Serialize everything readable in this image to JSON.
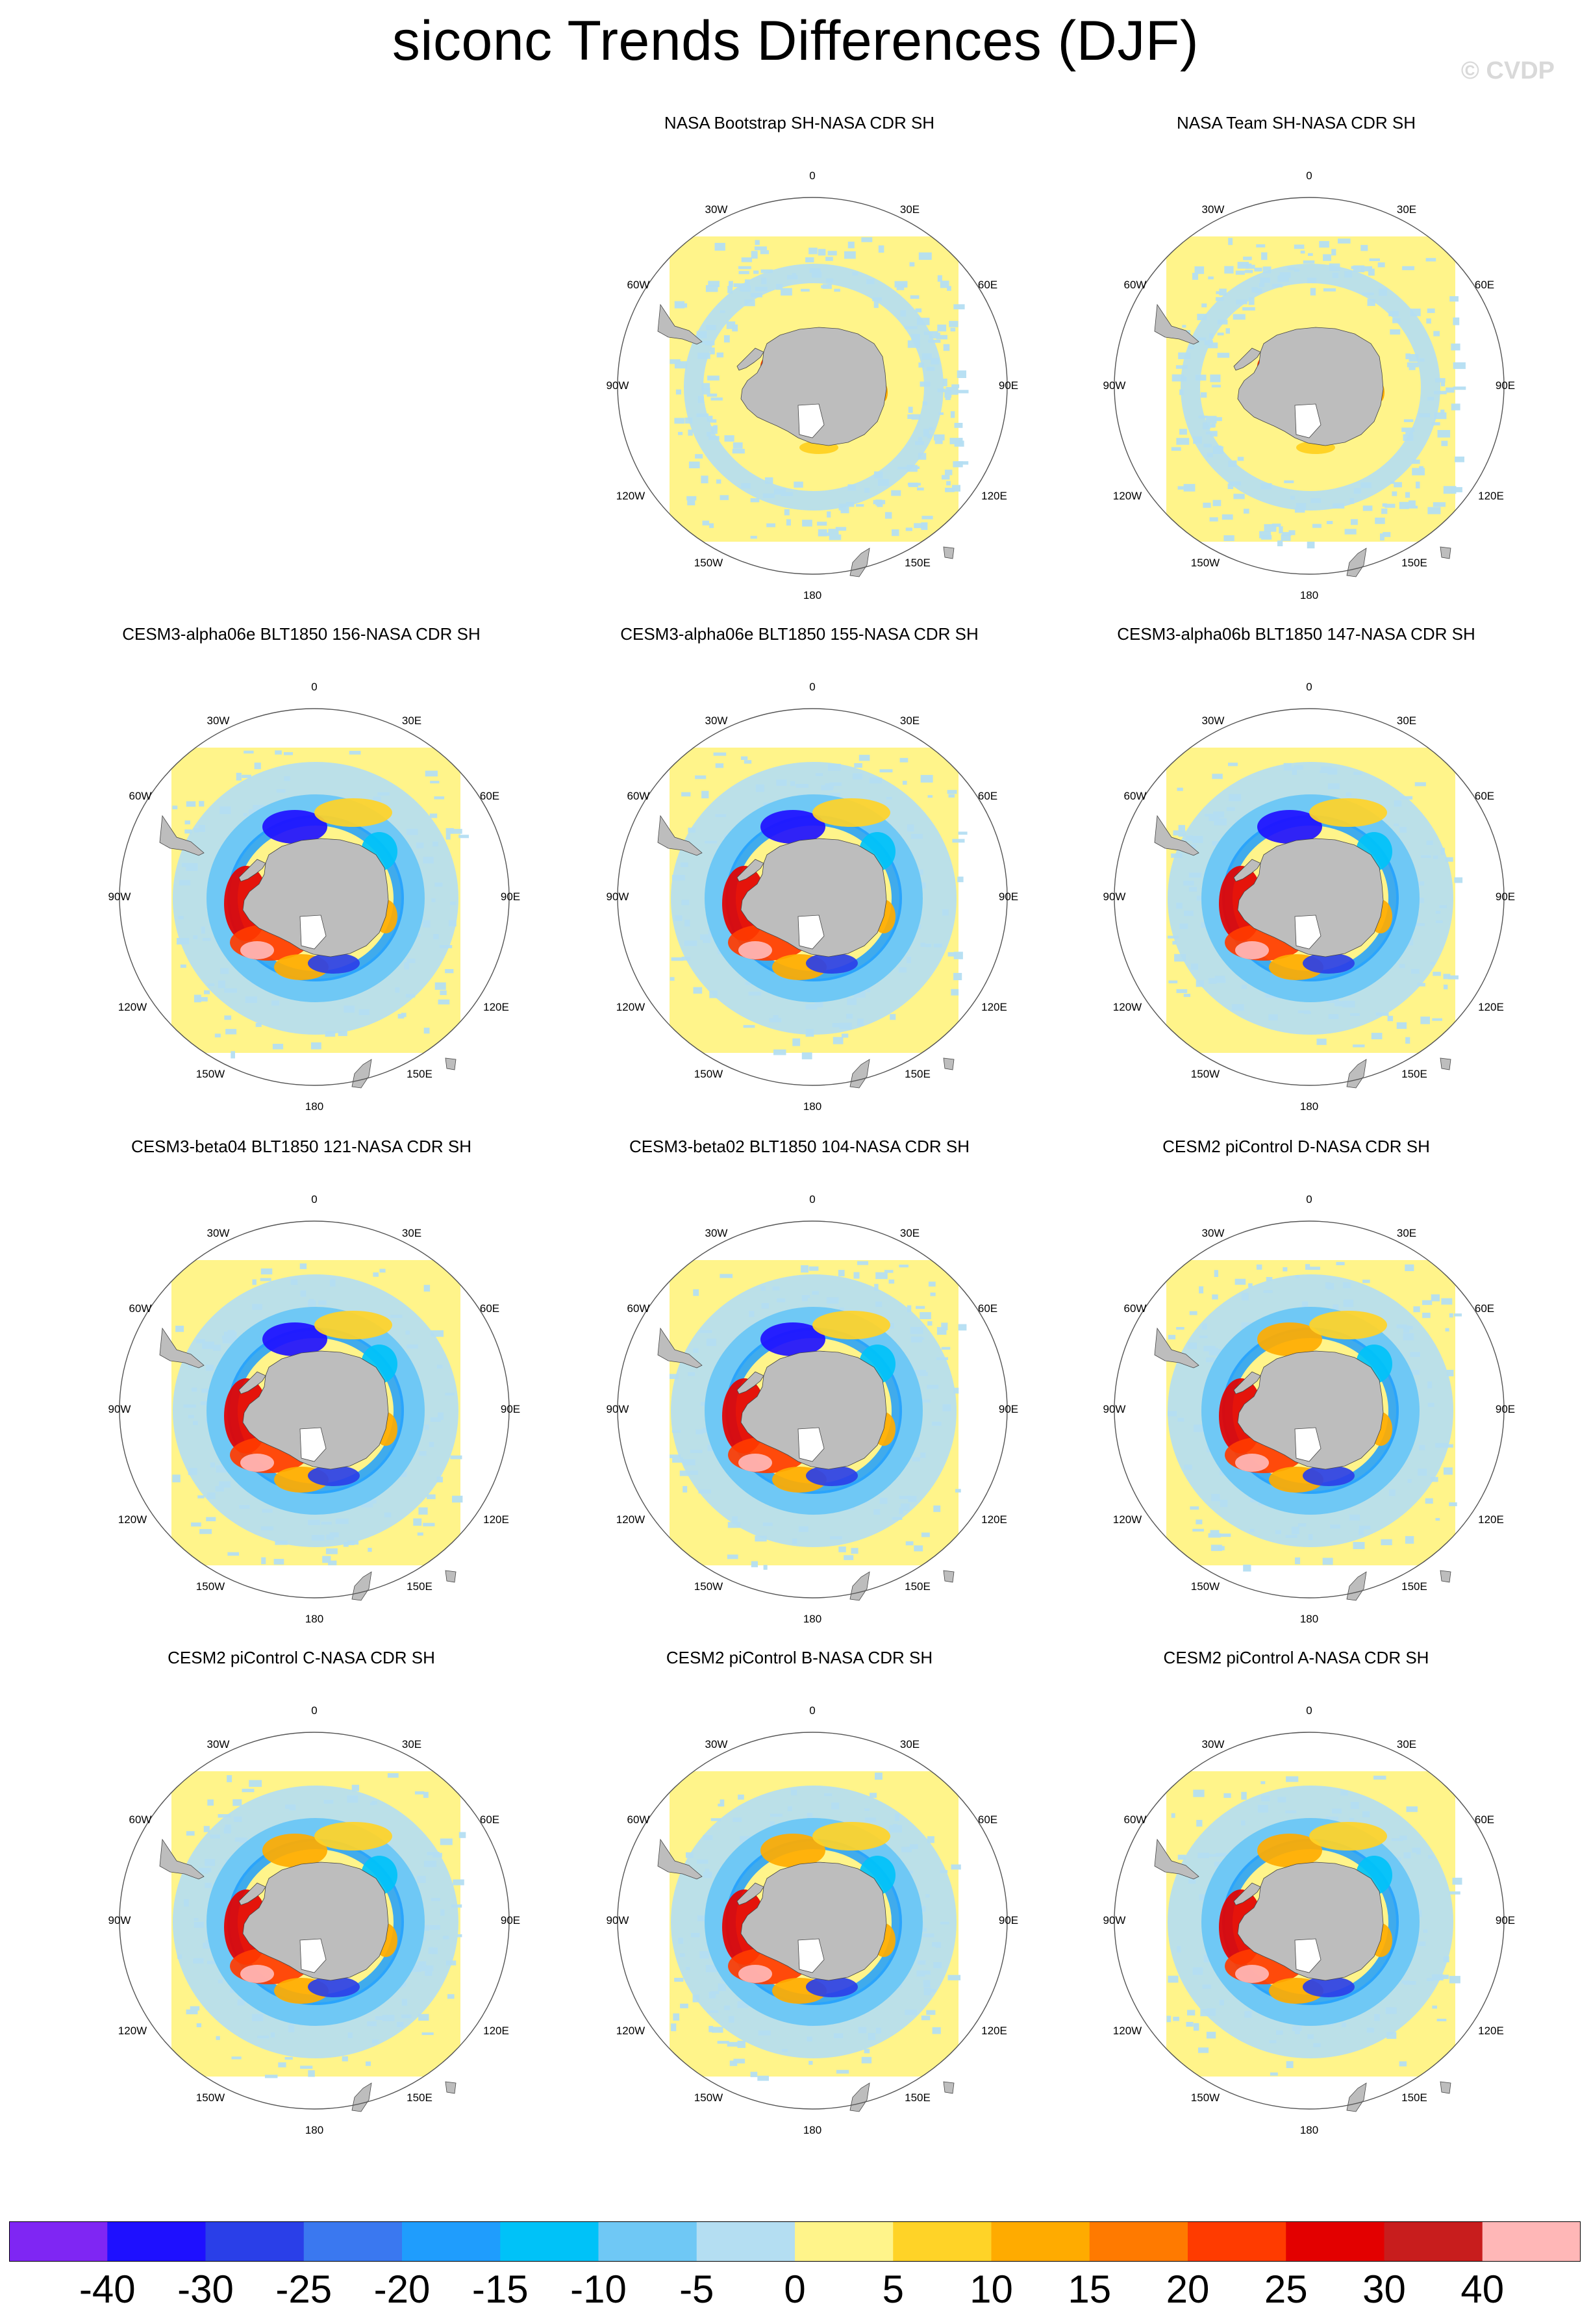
{
  "title": "siconc Trends Differences (DJF)",
  "watermark": "© CVDP",
  "colors": {
    "land": "#bdbdbd",
    "bins": [
      "#7f26f3",
      "#1e10ff",
      "#2a3fe8",
      "#3a78f0",
      "#1f9dfd",
      "#00c2f8",
      "#6fc8f5",
      "#b4def2",
      "#fff48a",
      "#ffd327",
      "#ffab00",
      "#ff7a00",
      "#ff3b00",
      "#e30000",
      "#c81d1d",
      "#ffb7b7"
    ]
  },
  "map_labels": {
    "top": "0",
    "bottom": "180",
    "tl": "30W",
    "tr": "30E",
    "ul": "60W",
    "ur": "60E",
    "ml": "90W",
    "mr": "90E",
    "ll": "120W",
    "lr": "120E",
    "bl": "150W",
    "br": "150E"
  },
  "chart_data": {
    "type": "heatmap",
    "title": "siconc Trends Differences (DJF)",
    "variable": "siconc",
    "season": "DJF",
    "projection": "south polar stereographic",
    "panels": [
      {
        "title": "NASA Bootstrap SH-NASA CDR SH",
        "pattern": "weak"
      },
      {
        "title": "NASA Team SH-NASA CDR SH",
        "pattern": "weak"
      },
      {
        "title": "CESM3-alpha06e BLT1850 156-NASA CDR SH",
        "pattern": "strong"
      },
      {
        "title": "CESM3-alpha06e BLT1850 155-NASA CDR SH",
        "pattern": "strong"
      },
      {
        "title": "CESM3-alpha06b BLT1850 147-NASA CDR SH",
        "pattern": "strong"
      },
      {
        "title": "CESM3-beta04 BLT1850 121-NASA CDR SH",
        "pattern": "strong"
      },
      {
        "title": "CESM3-beta02 BLT1850 104-NASA CDR SH",
        "pattern": "strong"
      },
      {
        "title": "CESM2 piControl D-NASA CDR SH",
        "pattern": "moderate"
      },
      {
        "title": "CESM2 piControl C-NASA CDR SH",
        "pattern": "moderate"
      },
      {
        "title": "CESM2 piControl B-NASA CDR SH",
        "pattern": "moderate"
      },
      {
        "title": "CESM2 piControl A-NASA CDR SH",
        "pattern": "moderate"
      }
    ],
    "colorbar": {
      "levels": [
        -40,
        -30,
        -25,
        -20,
        -15,
        -10,
        -5,
        0,
        5,
        10,
        15,
        20,
        25,
        30,
        40
      ],
      "label_text": [
        "-40",
        "-30",
        "-25",
        "-20",
        "-15",
        "-10",
        "-5",
        "0",
        "5",
        "10",
        "15",
        "20",
        "25",
        "30",
        "40"
      ]
    }
  }
}
